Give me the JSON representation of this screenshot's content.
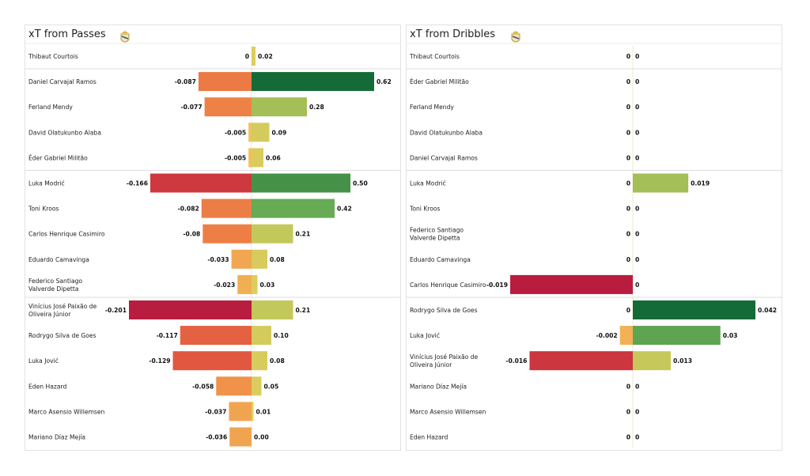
{
  "chart_data": [
    {
      "type": "bar",
      "title": "xT from Passes",
      "players": [
        "Thibaut Courtois",
        "Daniel Carvajal Ramos",
        "Ferland Mendy",
        "David Olatukunbo Alaba",
        "Éder Gabriel Militão",
        "Luka Modrić",
        "Toni Kroos",
        "Carlos Henrique Casimiro",
        "Eduardo Camavinga",
        "Federico Santiago\nValverde Dipetta",
        "Vinícius José Paixão de\nOliveira Júnior",
        "Rodrygo Silva de Goes",
        "Luka Jović",
        "Eden Hazard",
        "Marco Asensio Willemsen",
        "Mariano Díaz Mejía"
      ],
      "series": [
        {
          "values": [
            0,
            -0.087,
            -0.077,
            -0.005,
            -0.005,
            -0.166,
            -0.082,
            -0.08,
            -0.033,
            -0.023,
            -0.201,
            -0.117,
            -0.129,
            -0.058,
            -0.037,
            -0.036
          ],
          "labels": [
            "0",
            "-0.087",
            "-0.077",
            "-0.005",
            "-0.005",
            "-0.166",
            "-0.082",
            "-0.08",
            "-0.033",
            "-0.023",
            "-0.201",
            "-0.117",
            "-0.129",
            "-0.058",
            "-0.037",
            "-0.036"
          ]
        },
        {
          "values": [
            0.02,
            0.62,
            0.28,
            0.09,
            0.06,
            0.5,
            0.42,
            0.21,
            0.08,
            0.03,
            0.21,
            0.1,
            0.08,
            0.05,
            0.01,
            0.0
          ],
          "labels": [
            "0.02",
            "0.62",
            "0.28",
            "0.09",
            "0.06",
            "0.50",
            "0.42",
            "0.21",
            "0.08",
            "0.03",
            "0.21",
            "0.10",
            "0.08",
            "0.05",
            "0.01",
            "0.00"
          ]
        }
      ],
      "groups_end_after": [
        1,
        5,
        10
      ]
    },
    {
      "type": "bar",
      "title": "xT from Dribbles",
      "players": [
        "Thibaut Courtois",
        "Éder Gabriel Militão",
        "Ferland Mendy",
        "David Olatukunbo Alaba",
        "Daniel Carvajal Ramos",
        "Luka Modrić",
        "Toni Kroos",
        "Federico Santiago\nValverde Dipetta",
        "Eduardo Camavinga",
        "Carlos Henrique Casimiro",
        "Rodrygo Silva de Goes",
        "Luka Jović",
        "Vinícius José Paixão de\nOliveira Júnior",
        "Mariano Díaz Mejía",
        "Marco Asensio Willemsen",
        "Eden Hazard"
      ],
      "series": [
        {
          "values": [
            0,
            0,
            0,
            0,
            0,
            0,
            0,
            0,
            0,
            -0.019,
            0,
            -0.002,
            -0.016,
            0,
            0,
            0
          ],
          "labels": [
            "0",
            "0",
            "0",
            "0",
            "0",
            "0",
            "0",
            "0",
            "0",
            "-0.019",
            "0",
            "-0.002",
            "-0.016",
            "0",
            "0",
            "0"
          ]
        },
        {
          "values": [
            0,
            0,
            0,
            0,
            0,
            0.019,
            0,
            0,
            0,
            0,
            0.042,
            0.03,
            0.013,
            0,
            0,
            0
          ],
          "labels": [
            "0",
            "0",
            "0",
            "0",
            "0",
            "0.019",
            "0",
            "0",
            "0",
            "0",
            "0.042",
            "0.03",
            "0.013",
            "0",
            "0",
            "0"
          ]
        }
      ],
      "groups_end_after": [
        1,
        5,
        10
      ]
    }
  ],
  "colors": {
    "negative_scale": [
      "#f2c35a",
      "#f08a47",
      "#e0533f",
      "#b81c3f"
    ],
    "positive_scale": [
      "#e2cd5e",
      "#c4c85a",
      "#6aad55",
      "#156b37"
    ],
    "text": "#111111",
    "grid": "#dddddd"
  },
  "icons": {
    "crest": "real-madrid-crest"
  }
}
